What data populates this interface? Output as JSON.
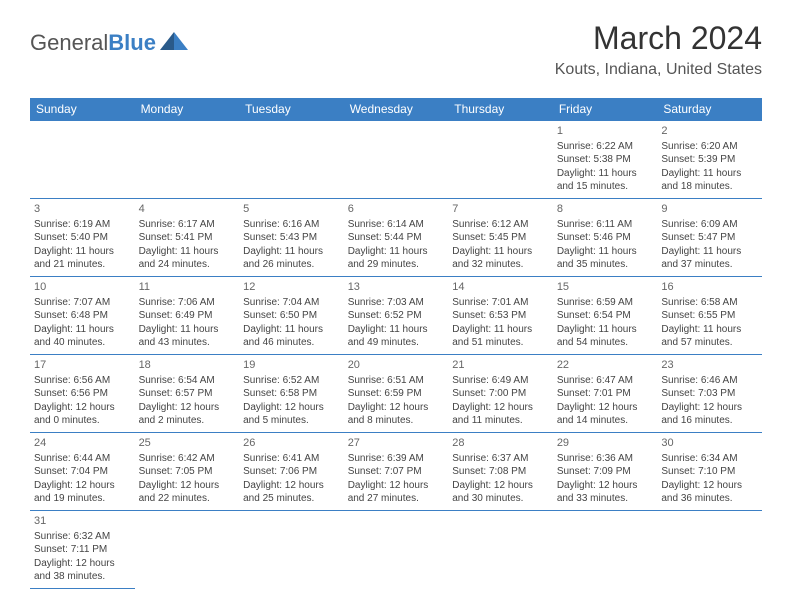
{
  "logo": {
    "text1": "General",
    "text2": "Blue"
  },
  "title": "March 2024",
  "location": "Kouts, Indiana, United States",
  "colors": {
    "header_bg": "#3b7fc4",
    "border": "#3b7fc4",
    "text": "#333333"
  },
  "day_headers": [
    "Sunday",
    "Monday",
    "Tuesday",
    "Wednesday",
    "Thursday",
    "Friday",
    "Saturday"
  ],
  "weeks": [
    [
      null,
      null,
      null,
      null,
      null,
      {
        "n": "1",
        "sr": "Sunrise: 6:22 AM",
        "ss": "Sunset: 5:38 PM",
        "d1": "Daylight: 11 hours",
        "d2": "and 15 minutes."
      },
      {
        "n": "2",
        "sr": "Sunrise: 6:20 AM",
        "ss": "Sunset: 5:39 PM",
        "d1": "Daylight: 11 hours",
        "d2": "and 18 minutes."
      }
    ],
    [
      {
        "n": "3",
        "sr": "Sunrise: 6:19 AM",
        "ss": "Sunset: 5:40 PM",
        "d1": "Daylight: 11 hours",
        "d2": "and 21 minutes."
      },
      {
        "n": "4",
        "sr": "Sunrise: 6:17 AM",
        "ss": "Sunset: 5:41 PM",
        "d1": "Daylight: 11 hours",
        "d2": "and 24 minutes."
      },
      {
        "n": "5",
        "sr": "Sunrise: 6:16 AM",
        "ss": "Sunset: 5:43 PM",
        "d1": "Daylight: 11 hours",
        "d2": "and 26 minutes."
      },
      {
        "n": "6",
        "sr": "Sunrise: 6:14 AM",
        "ss": "Sunset: 5:44 PM",
        "d1": "Daylight: 11 hours",
        "d2": "and 29 minutes."
      },
      {
        "n": "7",
        "sr": "Sunrise: 6:12 AM",
        "ss": "Sunset: 5:45 PM",
        "d1": "Daylight: 11 hours",
        "d2": "and 32 minutes."
      },
      {
        "n": "8",
        "sr": "Sunrise: 6:11 AM",
        "ss": "Sunset: 5:46 PM",
        "d1": "Daylight: 11 hours",
        "d2": "and 35 minutes."
      },
      {
        "n": "9",
        "sr": "Sunrise: 6:09 AM",
        "ss": "Sunset: 5:47 PM",
        "d1": "Daylight: 11 hours",
        "d2": "and 37 minutes."
      }
    ],
    [
      {
        "n": "10",
        "sr": "Sunrise: 7:07 AM",
        "ss": "Sunset: 6:48 PM",
        "d1": "Daylight: 11 hours",
        "d2": "and 40 minutes."
      },
      {
        "n": "11",
        "sr": "Sunrise: 7:06 AM",
        "ss": "Sunset: 6:49 PM",
        "d1": "Daylight: 11 hours",
        "d2": "and 43 minutes."
      },
      {
        "n": "12",
        "sr": "Sunrise: 7:04 AM",
        "ss": "Sunset: 6:50 PM",
        "d1": "Daylight: 11 hours",
        "d2": "and 46 minutes."
      },
      {
        "n": "13",
        "sr": "Sunrise: 7:03 AM",
        "ss": "Sunset: 6:52 PM",
        "d1": "Daylight: 11 hours",
        "d2": "and 49 minutes."
      },
      {
        "n": "14",
        "sr": "Sunrise: 7:01 AM",
        "ss": "Sunset: 6:53 PM",
        "d1": "Daylight: 11 hours",
        "d2": "and 51 minutes."
      },
      {
        "n": "15",
        "sr": "Sunrise: 6:59 AM",
        "ss": "Sunset: 6:54 PM",
        "d1": "Daylight: 11 hours",
        "d2": "and 54 minutes."
      },
      {
        "n": "16",
        "sr": "Sunrise: 6:58 AM",
        "ss": "Sunset: 6:55 PM",
        "d1": "Daylight: 11 hours",
        "d2": "and 57 minutes."
      }
    ],
    [
      {
        "n": "17",
        "sr": "Sunrise: 6:56 AM",
        "ss": "Sunset: 6:56 PM",
        "d1": "Daylight: 12 hours",
        "d2": "and 0 minutes."
      },
      {
        "n": "18",
        "sr": "Sunrise: 6:54 AM",
        "ss": "Sunset: 6:57 PM",
        "d1": "Daylight: 12 hours",
        "d2": "and 2 minutes."
      },
      {
        "n": "19",
        "sr": "Sunrise: 6:52 AM",
        "ss": "Sunset: 6:58 PM",
        "d1": "Daylight: 12 hours",
        "d2": "and 5 minutes."
      },
      {
        "n": "20",
        "sr": "Sunrise: 6:51 AM",
        "ss": "Sunset: 6:59 PM",
        "d1": "Daylight: 12 hours",
        "d2": "and 8 minutes."
      },
      {
        "n": "21",
        "sr": "Sunrise: 6:49 AM",
        "ss": "Sunset: 7:00 PM",
        "d1": "Daylight: 12 hours",
        "d2": "and 11 minutes."
      },
      {
        "n": "22",
        "sr": "Sunrise: 6:47 AM",
        "ss": "Sunset: 7:01 PM",
        "d1": "Daylight: 12 hours",
        "d2": "and 14 minutes."
      },
      {
        "n": "23",
        "sr": "Sunrise: 6:46 AM",
        "ss": "Sunset: 7:03 PM",
        "d1": "Daylight: 12 hours",
        "d2": "and 16 minutes."
      }
    ],
    [
      {
        "n": "24",
        "sr": "Sunrise: 6:44 AM",
        "ss": "Sunset: 7:04 PM",
        "d1": "Daylight: 12 hours",
        "d2": "and 19 minutes."
      },
      {
        "n": "25",
        "sr": "Sunrise: 6:42 AM",
        "ss": "Sunset: 7:05 PM",
        "d1": "Daylight: 12 hours",
        "d2": "and 22 minutes."
      },
      {
        "n": "26",
        "sr": "Sunrise: 6:41 AM",
        "ss": "Sunset: 7:06 PM",
        "d1": "Daylight: 12 hours",
        "d2": "and 25 minutes."
      },
      {
        "n": "27",
        "sr": "Sunrise: 6:39 AM",
        "ss": "Sunset: 7:07 PM",
        "d1": "Daylight: 12 hours",
        "d2": "and 27 minutes."
      },
      {
        "n": "28",
        "sr": "Sunrise: 6:37 AM",
        "ss": "Sunset: 7:08 PM",
        "d1": "Daylight: 12 hours",
        "d2": "and 30 minutes."
      },
      {
        "n": "29",
        "sr": "Sunrise: 6:36 AM",
        "ss": "Sunset: 7:09 PM",
        "d1": "Daylight: 12 hours",
        "d2": "and 33 minutes."
      },
      {
        "n": "30",
        "sr": "Sunrise: 6:34 AM",
        "ss": "Sunset: 7:10 PM",
        "d1": "Daylight: 12 hours",
        "d2": "and 36 minutes."
      }
    ],
    [
      {
        "n": "31",
        "sr": "Sunrise: 6:32 AM",
        "ss": "Sunset: 7:11 PM",
        "d1": "Daylight: 12 hours",
        "d2": "and 38 minutes."
      },
      null,
      null,
      null,
      null,
      null,
      null
    ]
  ]
}
